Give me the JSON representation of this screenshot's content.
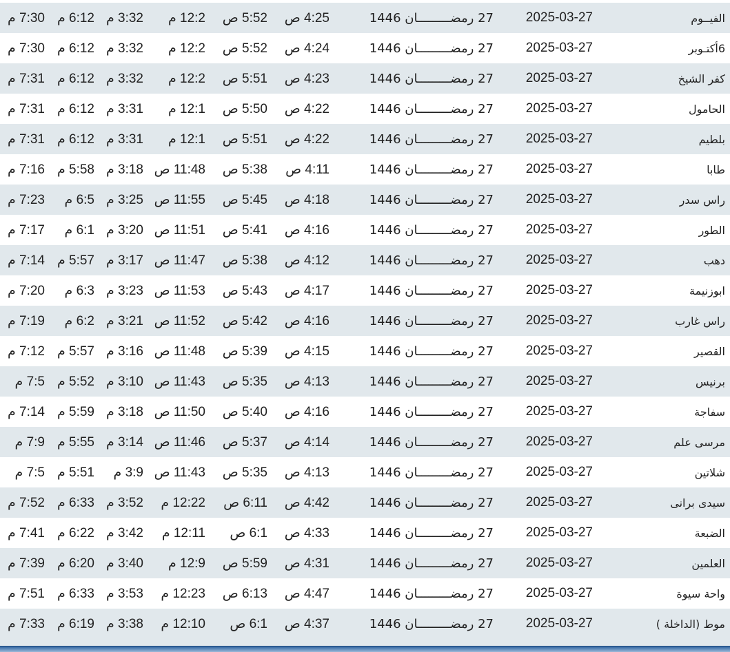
{
  "rows": [
    {
      "city": "الفيــوم",
      "date": "2025-03-27",
      "hijri": "27 رمضـــــــــان 1446",
      "fajr": "4:25 ص",
      "sunrise": "5:52 ص",
      "dhuhr": "12:2 م",
      "asr": "3:32 م",
      "maghrib": "6:12 م",
      "isha": "7:30 م"
    },
    {
      "city": "6أكتـوبر",
      "date": "2025-03-27",
      "hijri": "27 رمضـــــــــان 1446",
      "fajr": "4:24 ص",
      "sunrise": "5:52 ص",
      "dhuhr": "12:2 م",
      "asr": "3:32 م",
      "maghrib": "6:12 م",
      "isha": "7:30 م"
    },
    {
      "city": "كفر الشيخ",
      "date": "2025-03-27",
      "hijri": "27 رمضـــــــــان 1446",
      "fajr": "4:23 ص",
      "sunrise": "5:51 ص",
      "dhuhr": "12:2 م",
      "asr": "3:32 م",
      "maghrib": "6:12 م",
      "isha": "7:31 م"
    },
    {
      "city": "الحامول",
      "date": "2025-03-27",
      "hijri": "27 رمضـــــــــان 1446",
      "fajr": "4:22 ص",
      "sunrise": "5:50 ص",
      "dhuhr": "12:1 م",
      "asr": "3:31 م",
      "maghrib": "6:12 م",
      "isha": "7:31 م"
    },
    {
      "city": "بلطيم",
      "date": "2025-03-27",
      "hijri": "27 رمضـــــــــان 1446",
      "fajr": "4:22 ص",
      "sunrise": "5:51 ص",
      "dhuhr": "12:1 م",
      "asr": "3:31 م",
      "maghrib": "6:12 م",
      "isha": "7:31 م"
    },
    {
      "city": "طابا",
      "date": "2025-03-27",
      "hijri": "27 رمضـــــــــان 1446",
      "fajr": "4:11 ص",
      "sunrise": "5:38 ص",
      "dhuhr": "11:48 ص",
      "asr": "3:18 م",
      "maghrib": "5:58 م",
      "isha": "7:16 م"
    },
    {
      "city": "راس سدر",
      "date": "2025-03-27",
      "hijri": "27 رمضـــــــــان 1446",
      "fajr": "4:18 ص",
      "sunrise": "5:45 ص",
      "dhuhr": "11:55 ص",
      "asr": "3:25 م",
      "maghrib": "6:5 م",
      "isha": "7:23 م"
    },
    {
      "city": "الطور",
      "date": "2025-03-27",
      "hijri": "27 رمضـــــــــان 1446",
      "fajr": "4:16 ص",
      "sunrise": "5:41 ص",
      "dhuhr": "11:51 ص",
      "asr": "3:20 م",
      "maghrib": "6:1 م",
      "isha": "7:17 م"
    },
    {
      "city": "دهب",
      "date": "2025-03-27",
      "hijri": "27 رمضـــــــــان 1446",
      "fajr": "4:12 ص",
      "sunrise": "5:38 ص",
      "dhuhr": "11:47 ص",
      "asr": "3:17 م",
      "maghrib": "5:57 م",
      "isha": "7:14 م"
    },
    {
      "city": "ابوزنيمة",
      "date": "2025-03-27",
      "hijri": "27 رمضـــــــــان 1446",
      "fajr": "4:17 ص",
      "sunrise": "5:43 ص",
      "dhuhr": "11:53 ص",
      "asr": "3:23 م",
      "maghrib": "6:3 م",
      "isha": "7:20 م"
    },
    {
      "city": "راس غارب",
      "date": "2025-03-27",
      "hijri": "27 رمضـــــــــان 1446",
      "fajr": "4:16 ص",
      "sunrise": "5:42 ص",
      "dhuhr": "11:52 ص",
      "asr": "3:21 م",
      "maghrib": "6:2 م",
      "isha": "7:19 م"
    },
    {
      "city": "القصير",
      "date": "2025-03-27",
      "hijri": "27 رمضـــــــــان 1446",
      "fajr": "4:15 ص",
      "sunrise": "5:39 ص",
      "dhuhr": "11:48 ص",
      "asr": "3:16 م",
      "maghrib": "5:57 م",
      "isha": "7:12 م"
    },
    {
      "city": "برنيس",
      "date": "2025-03-27",
      "hijri": "27 رمضـــــــــان 1446",
      "fajr": "4:13 ص",
      "sunrise": "5:35 ص",
      "dhuhr": "11:43 ص",
      "asr": "3:10 م",
      "maghrib": "5:52 م",
      "isha": "7:5 م"
    },
    {
      "city": "سفاجة",
      "date": "2025-03-27",
      "hijri": "27 رمضـــــــــان 1446",
      "fajr": "4:16 ص",
      "sunrise": "5:40 ص",
      "dhuhr": "11:50 ص",
      "asr": "3:18 م",
      "maghrib": "5:59 م",
      "isha": "7:14 م"
    },
    {
      "city": "مرسى علم",
      "date": "2025-03-27",
      "hijri": "27 رمضـــــــــان 1446",
      "fajr": "4:14 ص",
      "sunrise": "5:37 ص",
      "dhuhr": "11:46 ص",
      "asr": "3:14 م",
      "maghrib": "5:55 م",
      "isha": "7:9 م"
    },
    {
      "city": "شلاتين",
      "date": "2025-03-27",
      "hijri": "27 رمضـــــــــان 1446",
      "fajr": "4:13 ص",
      "sunrise": "5:35 ص",
      "dhuhr": "11:43 ص",
      "asr": "3:9 م",
      "maghrib": "5:51 م",
      "isha": "7:5 م"
    },
    {
      "city": "سيدى برانى",
      "date": "2025-03-27",
      "hijri": "27 رمضـــــــــان 1446",
      "fajr": "4:42 ص",
      "sunrise": "6:11 ص",
      "dhuhr": "12:22 م",
      "asr": "3:52 م",
      "maghrib": "6:33 م",
      "isha": "7:52 م"
    },
    {
      "city": "الضبعة",
      "date": "2025-03-27",
      "hijri": "27 رمضـــــــــان 1446",
      "fajr": "4:33 ص",
      "sunrise": "6:1 ص",
      "dhuhr": "12:11 م",
      "asr": "3:42 م",
      "maghrib": "6:22 م",
      "isha": "7:41 م"
    },
    {
      "city": "العلمين",
      "date": "2025-03-27",
      "hijri": "27 رمضـــــــــان 1446",
      "fajr": "4:31 ص",
      "sunrise": "5:59 ص",
      "dhuhr": "12:9 م",
      "asr": "3:40 م",
      "maghrib": "6:20 م",
      "isha": "7:39 م"
    },
    {
      "city": "واحة سيوة",
      "date": "2025-03-27",
      "hijri": "27 رمضـــــــــان 1446",
      "fajr": "4:47 ص",
      "sunrise": "6:13 ص",
      "dhuhr": "12:23 م",
      "asr": "3:53 م",
      "maghrib": "6:33 م",
      "isha": "7:51 م"
    },
    {
      "city": "موط (الداخلة )",
      "date": "2025-03-27",
      "hijri": "27 رمضـــــــــان 1446",
      "fajr": "4:37 ص",
      "sunrise": "6:1 ص",
      "dhuhr": "12:10 م",
      "asr": "3:38 م",
      "maghrib": "6:19 م",
      "isha": "7:33 م"
    }
  ],
  "colors": {
    "stripe": "#e1e8ec",
    "text": "#222222"
  }
}
